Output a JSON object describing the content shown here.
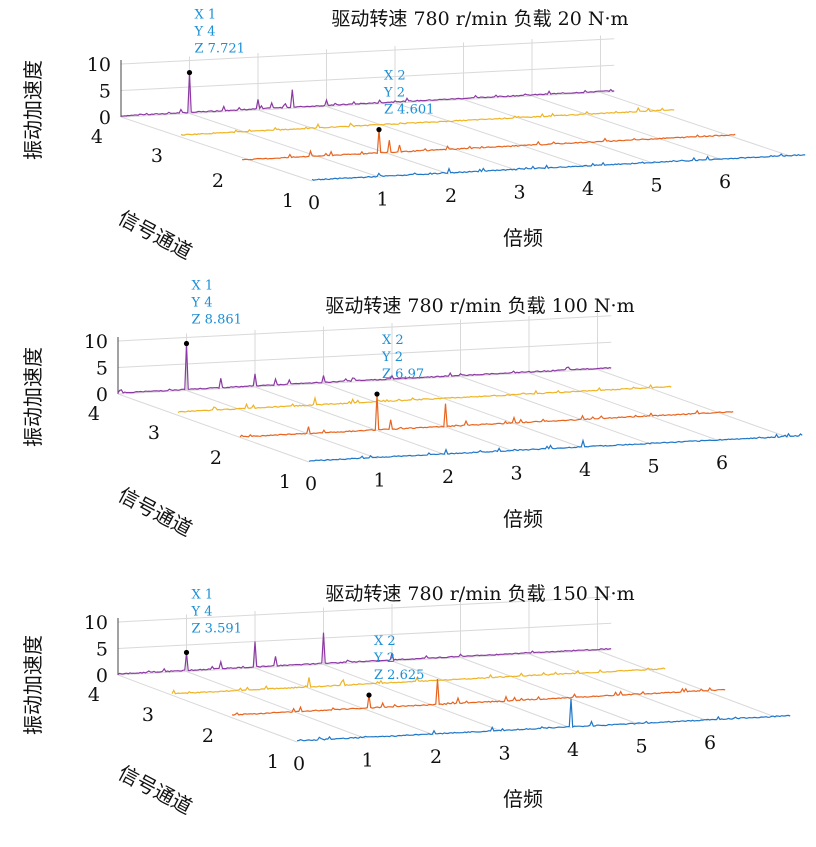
{
  "colors": {
    "channel_1": "#1f77c8",
    "channel_2": "#e8641e",
    "channel_3": "#efb425",
    "channel_4": "#8c3aa3",
    "datatip": "#1a8fd6",
    "grid": "#d9d9d9"
  },
  "chart_data": [
    {
      "type": "waterfall",
      "title": "驱动转速 780 r/min   负载 20 N·m",
      "xlabel": "倍频",
      "ylabel": "信号通道",
      "zlabel": "振动加速度",
      "x_ticks": [
        "0",
        "1",
        "2",
        "3",
        "4",
        "5",
        "6"
      ],
      "y_ticks": [
        "1",
        "2",
        "3",
        "4"
      ],
      "z_ticks": [
        "0",
        "5",
        "10"
      ],
      "xlim": [
        0,
        7
      ],
      "zlim": [
        0,
        10
      ],
      "grid": true,
      "series": [
        {
          "channel": 1,
          "peaks": [
            [
              1,
              0.4
            ],
            [
              1.5,
              0.5
            ],
            [
              2,
              1.0
            ],
            [
              2.5,
              0.7
            ],
            [
              3,
              0.3
            ],
            [
              4,
              0.3
            ]
          ]
        },
        {
          "channel": 2,
          "peaks": [
            [
              1,
              1.2
            ],
            [
              1.3,
              0.9
            ],
            [
              2,
              4.601
            ],
            [
              2.15,
              2.5
            ],
            [
              2.3,
              1.5
            ],
            [
              3,
              0.8
            ],
            [
              3.5,
              0.4
            ],
            [
              4,
              0.3
            ]
          ]
        },
        {
          "channel": 3,
          "peaks": [
            [
              1,
              0.5
            ],
            [
              2,
              0.9
            ],
            [
              2.5,
              0.4
            ],
            [
              3,
              0.3
            ]
          ]
        },
        {
          "channel": 4,
          "peaks": [
            [
              1,
              7.721
            ],
            [
              1.5,
              1.0
            ],
            [
              2,
              2.0
            ],
            [
              2.2,
              1.2
            ],
            [
              2.4,
              0.9
            ],
            [
              2.5,
              3.5
            ],
            [
              3,
              1.2
            ],
            [
              4,
              0.4
            ]
          ]
        }
      ],
      "datatips": [
        {
          "label_x": "X 1",
          "label_y": "Y 4",
          "label_z": "Z 7.721",
          "x": 1,
          "y": 4,
          "z": 7.721
        },
        {
          "label_x": "X 2",
          "label_y": "Y 2",
          "label_z": "Z 4.601",
          "x": 2,
          "y": 2,
          "z": 4.601
        }
      ]
    },
    {
      "type": "waterfall",
      "title": "驱动转速 780 r/min   负载 100 N·m",
      "xlabel": "倍频",
      "ylabel": "信号通道",
      "zlabel": "振动加速度",
      "x_ticks": [
        "0",
        "1",
        "2",
        "3",
        "4",
        "5",
        "6"
      ],
      "y_ticks": [
        "1",
        "2",
        "3",
        "4"
      ],
      "z_ticks": [
        "0",
        "5",
        "10"
      ],
      "xlim": [
        0,
        7
      ],
      "zlim": [
        0,
        10
      ],
      "grid": true,
      "series": [
        {
          "channel": 1,
          "peaks": [
            [
              1,
              0.3
            ],
            [
              2,
              1.0
            ],
            [
              2.5,
              0.5
            ],
            [
              3,
              0.4
            ],
            [
              4,
              1.4
            ],
            [
              5,
              0.3
            ],
            [
              6,
              0.3
            ]
          ]
        },
        {
          "channel": 2,
          "peaks": [
            [
              1,
              1.5
            ],
            [
              2,
              6.97
            ],
            [
              2.2,
              2.0
            ],
            [
              3,
              4.5
            ],
            [
              3.3,
              1.0
            ],
            [
              4,
              1.2
            ],
            [
              5,
              0.9
            ],
            [
              6,
              0.7
            ]
          ]
        },
        {
          "channel": 3,
          "peaks": [
            [
              1,
              1.0
            ],
            [
              2,
              1.5
            ],
            [
              2.5,
              0.5
            ],
            [
              3,
              0.4
            ],
            [
              4,
              0.3
            ]
          ]
        },
        {
          "channel": 4,
          "peaks": [
            [
              1,
              8.861
            ],
            [
              1.5,
              2.0
            ],
            [
              2,
              2.5
            ],
            [
              2.3,
              1.3
            ],
            [
              2.5,
              1.0
            ],
            [
              3,
              1.5
            ],
            [
              4,
              0.8
            ],
            [
              5,
              0.5
            ]
          ]
        }
      ],
      "datatips": [
        {
          "label_x": "X 1",
          "label_y": "Y 4",
          "label_z": "Z 8.861",
          "x": 1,
          "y": 4,
          "z": 8.861
        },
        {
          "label_x": "X 2",
          "label_y": "Y 2",
          "label_z": "Z 6.97",
          "x": 2,
          "y": 2,
          "z": 6.97
        }
      ]
    },
    {
      "type": "waterfall",
      "title": "驱动转速 780 r/min   负载 150 N·m",
      "xlabel": "倍频",
      "ylabel": "信号通道",
      "zlabel": "振动加速度",
      "x_ticks": [
        "0",
        "1",
        "2",
        "3",
        "4",
        "5",
        "6"
      ],
      "y_ticks": [
        "1",
        "2",
        "3",
        "4"
      ],
      "z_ticks": [
        "0",
        "5",
        "10"
      ],
      "xlim": [
        0,
        7
      ],
      "zlim": [
        0,
        10
      ],
      "grid": true,
      "series": [
        {
          "channel": 1,
          "peaks": [
            [
              1,
              0.4
            ],
            [
              2,
              0.8
            ],
            [
              3,
              0.5
            ],
            [
              4,
              5.5
            ],
            [
              4.3,
              1.0
            ],
            [
              5,
              0.3
            ],
            [
              6,
              0.3
            ]
          ]
        },
        {
          "channel": 2,
          "peaks": [
            [
              1,
              1.0
            ],
            [
              2,
              2.625
            ],
            [
              2.2,
              1.0
            ],
            [
              3,
              5.0
            ],
            [
              3.3,
              1.2
            ],
            [
              4,
              1.0
            ],
            [
              5,
              0.8
            ],
            [
              6,
              0.6
            ]
          ]
        },
        {
          "channel": 3,
          "peaks": [
            [
              1,
              0.6
            ],
            [
              2,
              2.0
            ],
            [
              2.5,
              1.2
            ],
            [
              3,
              0.5
            ]
          ]
        },
        {
          "channel": 4,
          "peaks": [
            [
              1,
              3.591
            ],
            [
              1.5,
              1.5
            ],
            [
              2,
              5.0
            ],
            [
              2.3,
              2.0
            ],
            [
              3,
              6.0
            ],
            [
              4,
              1.5
            ],
            [
              5,
              0.6
            ]
          ]
        }
      ],
      "datatips": [
        {
          "label_x": "X 1",
          "label_y": "Y 4",
          "label_z": "Z 3.591",
          "x": 1,
          "y": 4,
          "z": 3.591
        },
        {
          "label_x": "X 2",
          "label_y": "Y 2",
          "label_z": "Z 2.625",
          "x": 2,
          "y": 2,
          "z": 2.625
        }
      ]
    }
  ]
}
